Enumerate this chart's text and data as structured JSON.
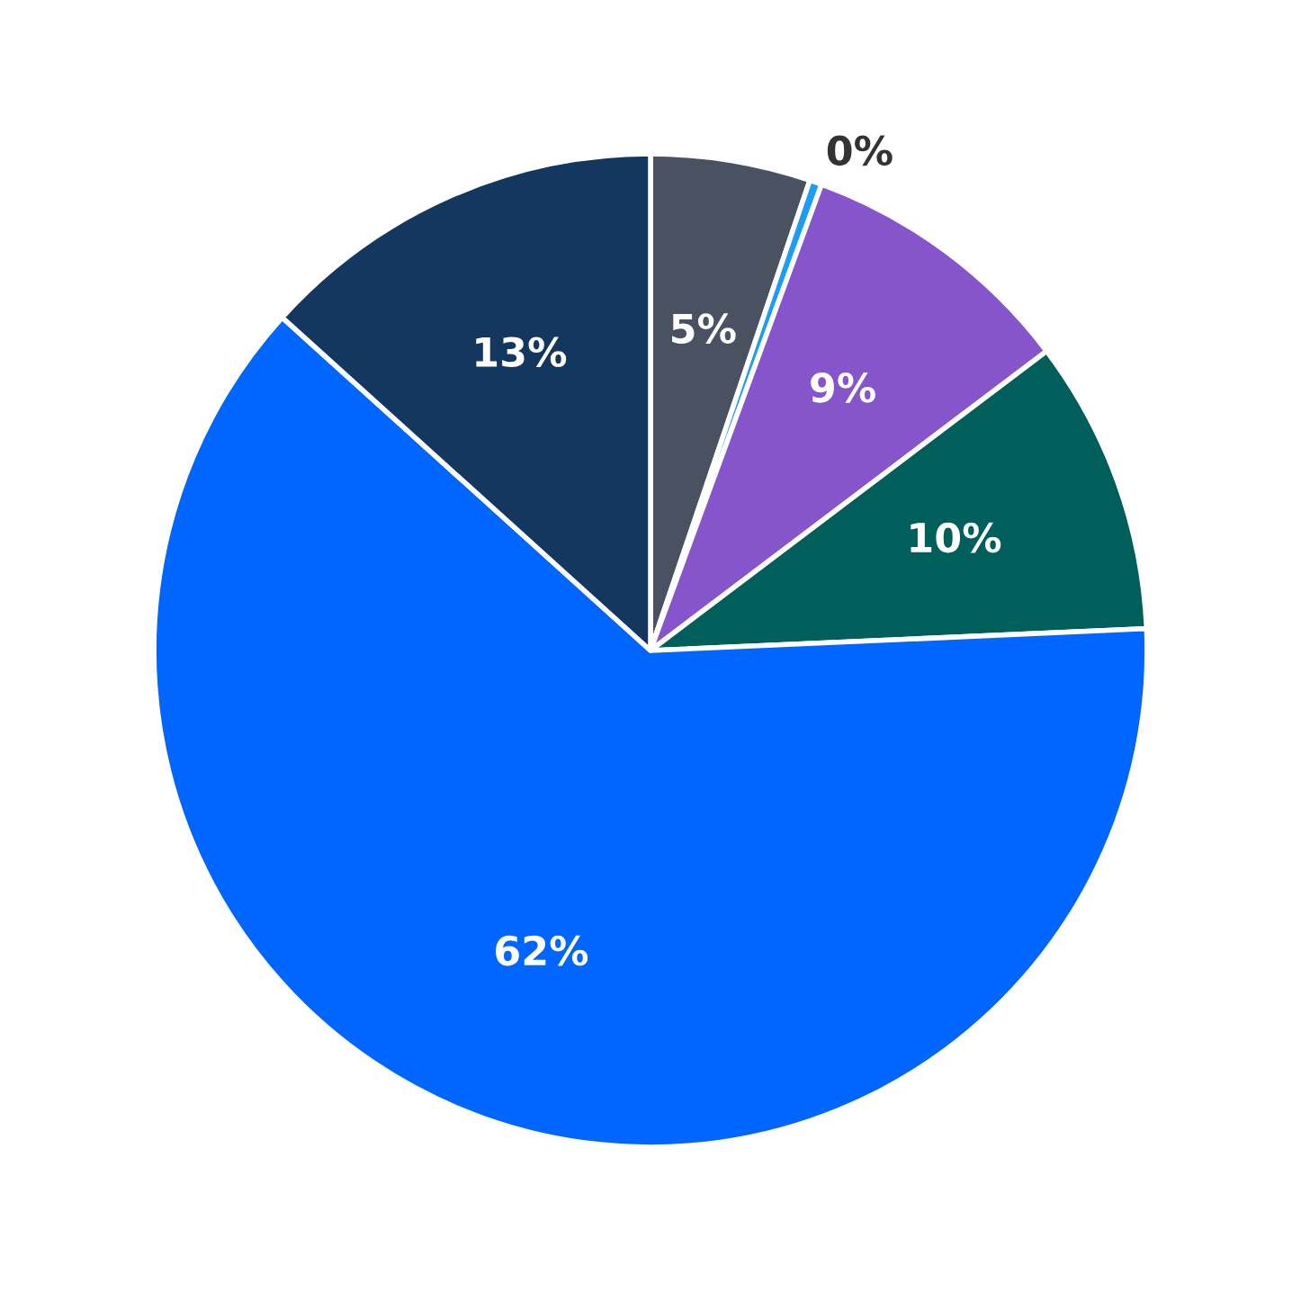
{
  "chart_data": {
    "type": "pie",
    "categories": [
      null,
      null,
      null,
      null,
      null,
      null
    ],
    "values": [
      5.2,
      0.4,
      9.1,
      9.6,
      62.4,
      13.3
    ],
    "value_labels": [
      "5%",
      "0%",
      "9%",
      "10%",
      "62%",
      "13%"
    ],
    "colors": [
      "#4a5261",
      "#1c9cf5",
      "#8655cc",
      "#005e5b",
      "#0066ff",
      "#14375f"
    ],
    "legend": false
  }
}
